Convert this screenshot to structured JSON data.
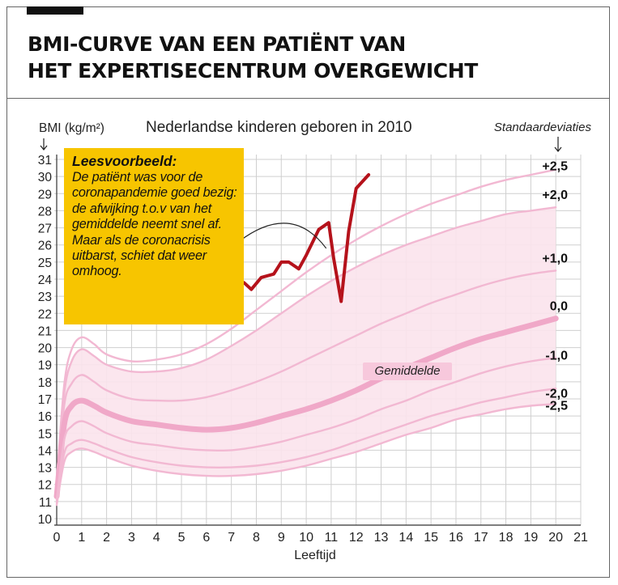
{
  "header": {
    "title_line1": "BMI-CURVE VAN EEN PATIËNT VAN",
    "title_line2": "HET EXPERTISECENTRUM OVERGEWICHT"
  },
  "callout": {
    "heading": "Leesvoorbeeld:",
    "text": "De patiënt was voor de coronapandemie goed bezig: de afwijking t.o.v van het gemiddelde neemt snel af. Maar als de coronacrisis uitbarst, schiet dat weer omhoog."
  },
  "colors": {
    "patient_line": "#b5121b",
    "curve": "#f2b8d2",
    "mean_curve": "#f0a8c8",
    "band_fill": "#fbe3ec",
    "grid": "#cfcfcf",
    "callout_bg": "#f7c500"
  },
  "chart_data": {
    "type": "line",
    "title": "Nederlandse kinderen geboren in 2010",
    "xlabel": "Leeftijd",
    "ylabel": "BMI (kg/m²)",
    "right_axis_label": "Standaardeviaties",
    "xlim": [
      0,
      21
    ],
    "ylim": [
      10,
      31
    ],
    "xticks": [
      "0",
      "1",
      "2",
      "3",
      "4",
      "5",
      "6",
      "7",
      "8",
      "9",
      "10",
      "11",
      "12",
      "13",
      "14",
      "15",
      "16",
      "17",
      "18",
      "19",
      "20",
      "21"
    ],
    "yticks": [
      "10",
      "11",
      "12",
      "13",
      "14",
      "15",
      "16",
      "17",
      "18",
      "19",
      "20",
      "21",
      "22",
      "23",
      "24",
      "25",
      "26",
      "27",
      "28",
      "29",
      "30",
      "31"
    ],
    "grid": true,
    "mean_label": "Gemiddelde",
    "reference_curves": [
      {
        "sd": "+2,5",
        "x": [
          0,
          0.3,
          0.6,
          1,
          1.5,
          2,
          3,
          4,
          5,
          6,
          7,
          8,
          9,
          10,
          11,
          12,
          13,
          14,
          15,
          16,
          17,
          18,
          19,
          20
        ],
        "y": [
          12.2,
          17.8,
          19.9,
          20.6,
          20.2,
          19.6,
          19.2,
          19.3,
          19.6,
          20.2,
          21.1,
          22.2,
          23.3,
          24.4,
          25.4,
          26.3,
          27.1,
          27.8,
          28.4,
          28.9,
          29.4,
          29.8,
          30.1,
          30.4
        ]
      },
      {
        "sd": "+2,0",
        "x": [
          0,
          0.3,
          0.6,
          1,
          1.5,
          2,
          3,
          4,
          5,
          6,
          7,
          8,
          9,
          10,
          11,
          12,
          13,
          14,
          15,
          16,
          17,
          18,
          19,
          20
        ],
        "y": [
          12.0,
          17.3,
          19.2,
          19.9,
          19.5,
          19.0,
          18.6,
          18.6,
          18.8,
          19.3,
          20.1,
          21.0,
          22.0,
          23.0,
          23.9,
          24.7,
          25.4,
          26.0,
          26.5,
          27.0,
          27.4,
          27.8,
          28.0,
          28.2
        ]
      },
      {
        "sd": "+1,0",
        "x": [
          0,
          0.3,
          0.6,
          1,
          1.5,
          2,
          3,
          4,
          5,
          6,
          7,
          8,
          9,
          10,
          11,
          12,
          13,
          14,
          15,
          16,
          17,
          18,
          19,
          20
        ],
        "y": [
          11.6,
          16.6,
          17.9,
          18.4,
          18.0,
          17.5,
          17.0,
          16.9,
          16.9,
          17.1,
          17.5,
          18.0,
          18.6,
          19.3,
          20.0,
          20.7,
          21.4,
          22.0,
          22.6,
          23.1,
          23.6,
          24.0,
          24.3,
          24.5
        ]
      },
      {
        "sd": "0,0",
        "mean": true,
        "x": [
          0,
          0.3,
          0.6,
          1,
          1.5,
          2,
          3,
          4,
          5,
          6,
          7,
          8,
          9,
          10,
          11,
          12,
          13,
          14,
          15,
          16,
          17,
          18,
          19,
          20
        ],
        "y": [
          11.3,
          15.5,
          16.6,
          16.9,
          16.6,
          16.2,
          15.7,
          15.5,
          15.3,
          15.2,
          15.3,
          15.6,
          16.0,
          16.4,
          16.9,
          17.5,
          18.2,
          18.8,
          19.4,
          20.0,
          20.5,
          20.9,
          21.3,
          21.7
        ]
      },
      {
        "sd": "-1,0",
        "x": [
          0,
          0.3,
          0.6,
          1,
          1.5,
          2,
          3,
          4,
          5,
          6,
          7,
          8,
          9,
          10,
          11,
          12,
          13,
          14,
          15,
          16,
          17,
          18,
          19,
          20
        ],
        "y": [
          11.1,
          14.6,
          15.4,
          15.7,
          15.4,
          15.0,
          14.5,
          14.3,
          14.1,
          14.0,
          14.0,
          14.2,
          14.5,
          14.9,
          15.3,
          15.8,
          16.4,
          16.9,
          17.5,
          18.0,
          18.5,
          18.9,
          19.2,
          19.4
        ]
      },
      {
        "sd": "-2,0",
        "x": [
          0,
          0.3,
          0.6,
          1,
          1.5,
          2,
          3,
          4,
          5,
          6,
          7,
          8,
          9,
          10,
          11,
          12,
          13,
          14,
          15,
          16,
          17,
          18,
          19,
          20
        ],
        "y": [
          10.9,
          13.8,
          14.4,
          14.6,
          14.4,
          14.1,
          13.6,
          13.3,
          13.1,
          13.0,
          13.0,
          13.1,
          13.3,
          13.6,
          14.0,
          14.5,
          15.0,
          15.5,
          16.0,
          16.4,
          16.8,
          17.1,
          17.4,
          17.6
        ]
      },
      {
        "sd": "-2,5",
        "x": [
          0,
          0.3,
          0.6,
          1,
          1.5,
          2,
          3,
          4,
          5,
          6,
          7,
          8,
          9,
          10,
          11,
          12,
          13,
          14,
          15,
          16,
          17,
          18,
          19,
          20
        ],
        "y": [
          10.8,
          13.3,
          13.9,
          14.1,
          13.9,
          13.6,
          13.1,
          12.8,
          12.6,
          12.5,
          12.5,
          12.6,
          12.8,
          13.1,
          13.5,
          13.9,
          14.4,
          14.9,
          15.3,
          15.8,
          16.1,
          16.4,
          16.6,
          16.7
        ]
      }
    ],
    "series": [
      {
        "name": "",
        "x": [
          7.1,
          7.5,
          7.8,
          8.2,
          8.7,
          9.0,
          9.3,
          9.7,
          10.0,
          10.5,
          10.9,
          11.1,
          11.4,
          11.7,
          12.0,
          12.5
        ],
        "y": [
          23.8,
          23.8,
          23.4,
          24.1,
          24.3,
          25.0,
          25.0,
          24.6,
          25.4,
          26.9,
          27.3,
          25.2,
          22.7,
          26.8,
          29.3,
          30.1
        ]
      }
    ],
    "annotation_arc": {
      "from": [
        7.3,
        26.2
      ],
      "peak": [
        9.4,
        27.2
      ],
      "to": [
        10.8,
        25.8
      ]
    }
  }
}
